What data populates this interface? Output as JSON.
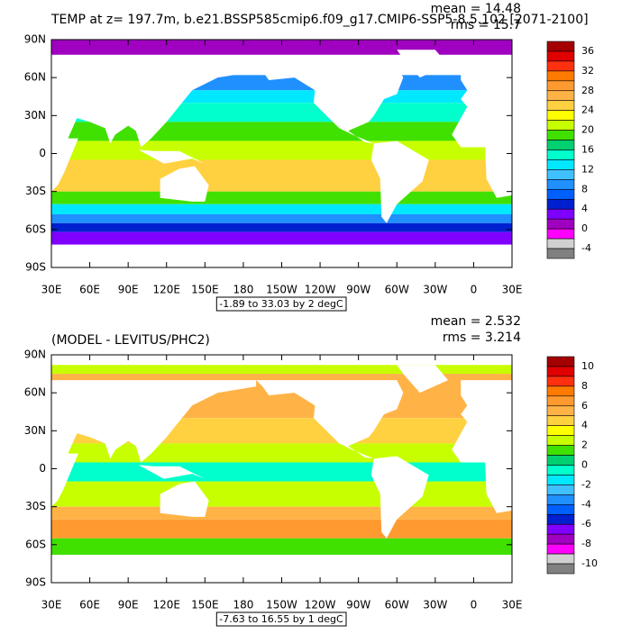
{
  "panels": [
    {
      "title": "TEMP at z= 197.7m, b.e21.BSSP585cmip6.f09_g17.CMIP6-SSP5-8.5.102 [2071-2100]",
      "mean": "mean = 14.48",
      "rms": "rms = 15.7",
      "lat_labels": [
        "90N",
        "60N",
        "30N",
        "0",
        "30S",
        "60S",
        "90S"
      ],
      "lon_labels": [
        "30E",
        "60E",
        "90E",
        "120E",
        "150E",
        "180",
        "150W",
        "120W",
        "90W",
        "60W",
        "30W",
        "0",
        "30E"
      ],
      "range_label": "-1.89 to 33.03 by 2 degC",
      "colorbar": {
        "labels": [
          36,
          32,
          28,
          24,
          20,
          16,
          12,
          8,
          4,
          0,
          -4
        ],
        "colors": [
          "#a50000",
          "#e00000",
          "#ff3010",
          "#ff7a00",
          "#ff9a30",
          "#ffb347",
          "#ffd040",
          "#ffff00",
          "#c8ff00",
          "#40e000",
          "#00d070",
          "#00ffcc",
          "#00e8ff",
          "#40c0ff",
          "#2090ff",
          "#0060ff",
          "#0020d0",
          "#8000ff",
          "#a000c0",
          "#ff00ff",
          "#d0d0d0",
          "#808080"
        ]
      }
    },
    {
      "title": "(MODEL - LEVITUS/PHC2)",
      "mean": "mean = 2.532",
      "rms": "rms = 3.214",
      "lat_labels": [
        "90N",
        "60N",
        "30N",
        "0",
        "30S",
        "60S",
        "90S"
      ],
      "lon_labels": [
        "30E",
        "60E",
        "90E",
        "120E",
        "150E",
        "180",
        "150W",
        "120W",
        "90W",
        "60W",
        "30W",
        "0",
        "30E"
      ],
      "range_label": "-7.63 to 16.55 by 1 degC",
      "colorbar": {
        "labels": [
          10,
          8,
          6,
          4,
          2,
          0,
          -2,
          -4,
          -6,
          -8,
          -10
        ],
        "colors": [
          "#a50000",
          "#e00000",
          "#ff3010",
          "#ff7a00",
          "#ff9a30",
          "#ffb347",
          "#ffd040",
          "#ffff00",
          "#c8ff00",
          "#40e000",
          "#00d070",
          "#00ffcc",
          "#00e8ff",
          "#40c0ff",
          "#2090ff",
          "#0060ff",
          "#0020d0",
          "#8000ff",
          "#a000c0",
          "#ff00ff",
          "#d0d0d0",
          "#808080"
        ]
      }
    }
  ]
}
